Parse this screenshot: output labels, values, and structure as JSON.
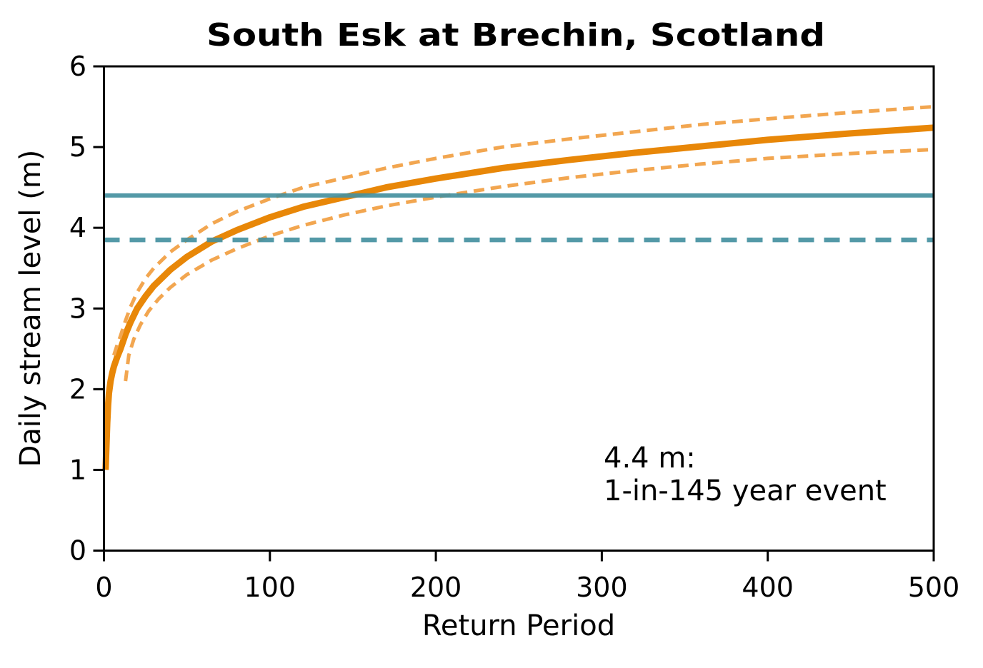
{
  "chart_data": {
    "type": "line",
    "title": "South Esk at Brechin, Scotland",
    "xlabel": "Return Period",
    "ylabel": "Daily stream level (m)",
    "xlim": [
      0,
      500
    ],
    "ylim": [
      0,
      6
    ],
    "x_ticks": [
      0,
      100,
      200,
      300,
      400,
      500
    ],
    "y_ticks": [
      0,
      1,
      2,
      3,
      4,
      5,
      6
    ],
    "grid": false,
    "legend": "none",
    "background_color": "#ffffff",
    "colors": {
      "main_curve_orange": "#e88708",
      "confidence_band_orange": "#f2a650",
      "reference_teal": "#44909f",
      "axis_black": "#000000"
    },
    "series": [
      {
        "name": "return-level-curve",
        "type": "line",
        "style": "solid",
        "color": "#e88708",
        "width": 9,
        "x": [
          1,
          1.5,
          2,
          2.5,
          3,
          4,
          5,
          6,
          8,
          10,
          13,
          16,
          20,
          25,
          30,
          40,
          50,
          65,
          80,
          100,
          120,
          145,
          170,
          200,
          240,
          280,
          320,
          360,
          400,
          450,
          500
        ],
        "y": [
          1.0,
          1.3,
          1.58,
          1.8,
          1.95,
          2.1,
          2.2,
          2.28,
          2.4,
          2.5,
          2.68,
          2.83,
          3.0,
          3.15,
          3.28,
          3.48,
          3.64,
          3.83,
          3.97,
          4.13,
          4.26,
          4.38,
          4.5,
          4.61,
          4.74,
          4.84,
          4.93,
          5.01,
          5.09,
          5.17,
          5.24
        ]
      },
      {
        "name": "upper-confidence-band",
        "type": "line",
        "style": "dashed",
        "dash": [
          15,
          9
        ],
        "color": "#f2a650",
        "width": 5,
        "x": [
          6,
          8,
          10,
          13,
          16,
          20,
          25,
          30,
          40,
          50,
          65,
          80,
          100,
          120,
          145,
          170,
          200,
          240,
          280,
          320,
          360,
          400,
          450,
          500
        ],
        "y": [
          2.42,
          2.55,
          2.66,
          2.85,
          3.02,
          3.2,
          3.37,
          3.5,
          3.7,
          3.85,
          4.05,
          4.2,
          4.36,
          4.5,
          4.62,
          4.74,
          4.86,
          5.0,
          5.1,
          5.19,
          5.28,
          5.35,
          5.43,
          5.5
        ]
      },
      {
        "name": "lower-confidence-band",
        "type": "line",
        "style": "dashed",
        "dash": [
          15,
          9
        ],
        "color": "#f2a650",
        "width": 5,
        "x": [
          13,
          15,
          18,
          22,
          27,
          33,
          40,
          50,
          65,
          80,
          100,
          120,
          145,
          170,
          200,
          240,
          280,
          320,
          360,
          400,
          450,
          500
        ],
        "y": [
          2.1,
          2.42,
          2.62,
          2.8,
          2.97,
          3.12,
          3.26,
          3.42,
          3.6,
          3.74,
          3.9,
          4.03,
          4.16,
          4.27,
          4.38,
          4.51,
          4.62,
          4.71,
          4.79,
          4.86,
          4.92,
          4.97
        ]
      },
      {
        "name": "reference-level-4.4m",
        "type": "hline",
        "style": "solid",
        "color": "#44909f",
        "opacity": 0.92,
        "width": 6,
        "y": 4.4
      },
      {
        "name": "reference-level-3.85m",
        "type": "hline",
        "style": "dashed",
        "dash": [
          22,
          14
        ],
        "color": "#44909f",
        "opacity": 0.92,
        "width": 6.5,
        "y": 3.85
      }
    ],
    "annotation": {
      "line1": "4.4 m:",
      "line2": "1-in-145 year event",
      "x": 301,
      "y_line1": 1.03,
      "y_line2": 0.62
    }
  }
}
